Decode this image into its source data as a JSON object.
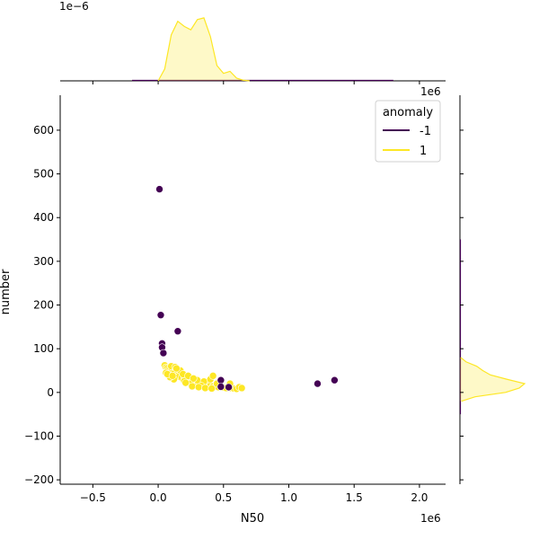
{
  "chart_data": {
    "type": "scatter",
    "title": "",
    "xlabel": "N50",
    "ylabel": "number",
    "x_offset_label": "1e6",
    "top_marginal_offset_label": "1e−6",
    "right_marginal_offset_label": "1e6",
    "xlim": [
      -750000,
      2200000
    ],
    "ylim": [
      -210,
      680
    ],
    "xticks": [
      -500000,
      0,
      500000,
      1000000,
      1500000,
      2000000
    ],
    "xtick_labels": [
      "−0.5",
      "0.0",
      "0.5",
      "1.0",
      "1.5",
      "2.0"
    ],
    "yticks": [
      -200,
      -100,
      0,
      100,
      200,
      300,
      400,
      500,
      600
    ],
    "ytick_labels": [
      "−200",
      "−100",
      "0",
      "100",
      "200",
      "300",
      "400",
      "500",
      "600"
    ],
    "grid": false,
    "legend": {
      "title": "anomaly",
      "placement": "top-right",
      "entries": [
        "-1",
        "1"
      ]
    },
    "colors": {
      "-1": "#440154",
      "1": "#fde725"
    },
    "series": [
      {
        "name": "-1",
        "points": [
          [
            10000,
            465
          ],
          [
            20000,
            177
          ],
          [
            30000,
            112
          ],
          [
            30000,
            103
          ],
          [
            40000,
            90
          ],
          [
            150000,
            140
          ],
          [
            480000,
            28
          ],
          [
            480000,
            13
          ],
          [
            540000,
            12
          ],
          [
            1220000,
            20
          ],
          [
            1350000,
            28
          ]
        ]
      },
      {
        "name": "1",
        "points": [
          [
            50000,
            62
          ],
          [
            60000,
            57
          ],
          [
            70000,
            55
          ],
          [
            80000,
            52
          ],
          [
            90000,
            50
          ],
          [
            100000,
            48
          ],
          [
            110000,
            45
          ],
          [
            120000,
            43
          ],
          [
            60000,
            45
          ],
          [
            80000,
            40
          ],
          [
            100000,
            60
          ],
          [
            130000,
            58
          ],
          [
            140000,
            40
          ],
          [
            150000,
            38
          ],
          [
            160000,
            36
          ],
          [
            180000,
            34
          ],
          [
            200000,
            32
          ],
          [
            220000,
            30
          ],
          [
            240000,
            28
          ],
          [
            260000,
            26
          ],
          [
            280000,
            24
          ],
          [
            300000,
            22
          ],
          [
            320000,
            20
          ],
          [
            340000,
            18
          ],
          [
            360000,
            17
          ],
          [
            380000,
            16
          ],
          [
            400000,
            15
          ],
          [
            420000,
            14
          ],
          [
            440000,
            13
          ],
          [
            460000,
            12
          ],
          [
            500000,
            11
          ],
          [
            520000,
            10
          ],
          [
            560000,
            10
          ],
          [
            580000,
            9
          ],
          [
            600000,
            8
          ],
          [
            620000,
            12
          ],
          [
            640000,
            10
          ],
          [
            200000,
            26
          ],
          [
            250000,
            20
          ],
          [
            300000,
            28
          ],
          [
            350000,
            25
          ],
          [
            400000,
            30
          ],
          [
            420000,
            38
          ],
          [
            450000,
            20
          ],
          [
            550000,
            20
          ],
          [
            170000,
            50
          ],
          [
            190000,
            42
          ],
          [
            230000,
            38
          ],
          [
            270000,
            32
          ],
          [
            330000,
            15
          ],
          [
            120000,
            30
          ],
          [
            140000,
            55
          ],
          [
            90000,
            35
          ],
          [
            70000,
            42
          ],
          [
            110000,
            38
          ],
          [
            210000,
            22
          ],
          [
            260000,
            14
          ],
          [
            310000,
            12
          ],
          [
            360000,
            10
          ],
          [
            410000,
            9
          ]
        ]
      }
    ],
    "marginal_top": {
      "series": "1",
      "x": [
        0,
        50000,
        100000,
        150000,
        200000,
        250000,
        300000,
        350000,
        400000,
        450000,
        500000,
        550000,
        600000,
        650000,
        700000
      ],
      "density": [
        0.0,
        0.35,
        1.35,
        1.75,
        1.6,
        1.5,
        1.8,
        1.85,
        1.3,
        0.45,
        0.22,
        0.28,
        0.08,
        0.02,
        0.0
      ]
    },
    "marginal_right": {
      "series": "1",
      "y": [
        -20,
        -10,
        0,
        10,
        20,
        30,
        40,
        50,
        60,
        70,
        80
      ],
      "density": [
        0.02,
        0.2,
        0.6,
        0.78,
        0.85,
        0.62,
        0.4,
        0.3,
        0.22,
        0.08,
        0.01
      ]
    }
  }
}
